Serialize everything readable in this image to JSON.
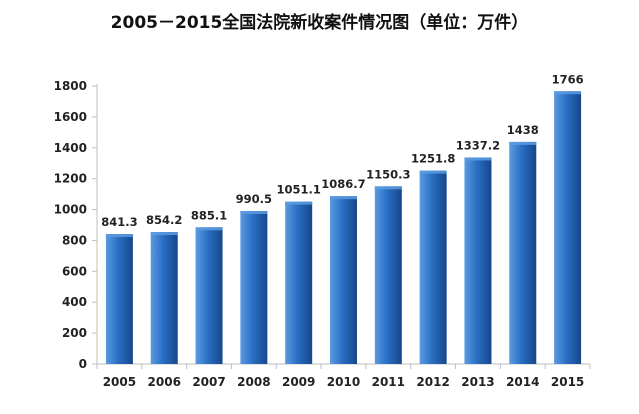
{
  "chart_data": {
    "type": "bar",
    "title": "2005－2015全国法院新收案件情况图（单位：万件）",
    "xlabel": "",
    "ylabel": "",
    "categories": [
      "2005",
      "2006",
      "2007",
      "2008",
      "2009",
      "2010",
      "2011",
      "2012",
      "2013",
      "2014",
      "2015"
    ],
    "values": [
      841.3,
      854.2,
      885.1,
      990.5,
      1051.1,
      1086.7,
      1150.3,
      1251.8,
      1337.2,
      1438,
      1766
    ],
    "value_labels": [
      "841.3",
      "854.2",
      "885.1",
      "990.5",
      "1051.1",
      "1086.7",
      "1150.3",
      "1251.8",
      "1337.2",
      "1438",
      "1766"
    ],
    "ylim": [
      0,
      1800
    ],
    "yticks": [
      0,
      200,
      400,
      600,
      800,
      1000,
      1200,
      1400,
      1600,
      1800
    ],
    "grid": false,
    "legend": "none",
    "colors": {
      "bar_light": "#5b9be0",
      "bar_mid": "#2a6fc4",
      "bar_dark": "#17468a",
      "axis": "#bfbfbf"
    }
  }
}
